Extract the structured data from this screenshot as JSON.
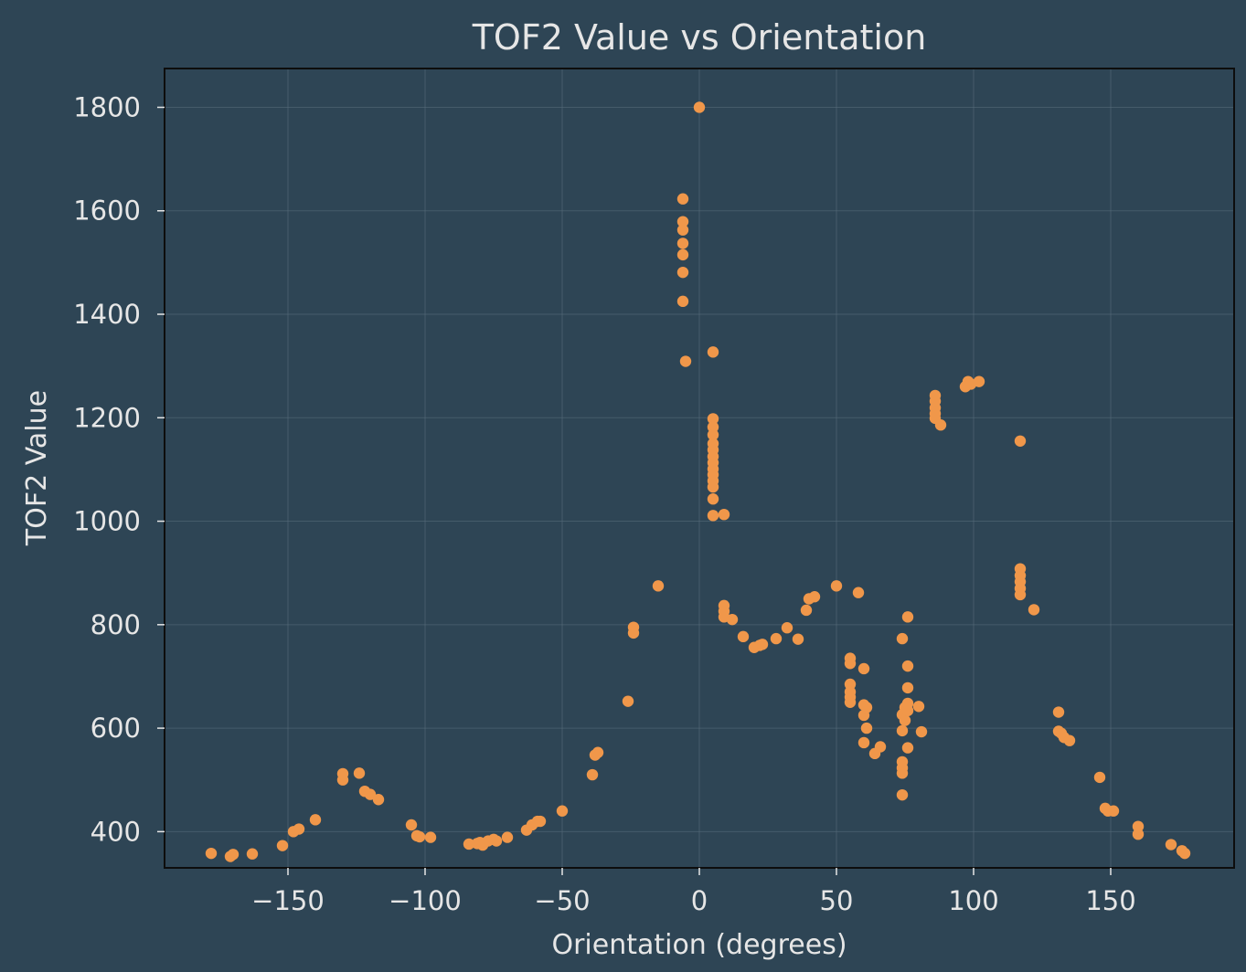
{
  "colors": {
    "background": "#2e4555",
    "plot_background": "#2e4555",
    "axes_frame": "#0d0d0d",
    "grid": "#5a6e7b",
    "text": "#e6e6e6",
    "marker": "#f0974a"
  },
  "chart_data": {
    "type": "scatter",
    "title": "TOF2 Value vs Orientation",
    "xlabel": "Orientation (degrees)",
    "ylabel": "TOF2 Value",
    "xlim": [
      -195,
      195
    ],
    "ylim": [
      330,
      1875
    ],
    "xticks": [
      -150,
      -100,
      -50,
      0,
      50,
      100,
      150
    ],
    "xtick_labels": [
      "−150",
      "−100",
      "−50",
      "0",
      "50",
      "100",
      "150"
    ],
    "yticks": [
      400,
      600,
      800,
      1000,
      1200,
      1400,
      1600,
      1800
    ],
    "ytick_labels": [
      "400",
      "600",
      "800",
      "1000",
      "1200",
      "1400",
      "1600",
      "1800"
    ],
    "grid": true,
    "series": [
      {
        "points": [
          [
            -178,
            358
          ],
          [
            -171,
            352
          ],
          [
            -170,
            356
          ],
          [
            -163,
            357
          ],
          [
            -152,
            373
          ],
          [
            -148,
            400
          ],
          [
            -146,
            405
          ],
          [
            -140,
            423
          ],
          [
            -130,
            500
          ],
          [
            -130,
            512
          ],
          [
            -124,
            513
          ],
          [
            -122,
            478
          ],
          [
            -120,
            472
          ],
          [
            -117,
            462
          ],
          [
            -105,
            413
          ],
          [
            -103,
            392
          ],
          [
            -102,
            390
          ],
          [
            -98,
            389
          ],
          [
            -84,
            376
          ],
          [
            -81,
            377
          ],
          [
            -80,
            379
          ],
          [
            -79,
            374
          ],
          [
            -77,
            382
          ],
          [
            -75,
            385
          ],
          [
            -74,
            382
          ],
          [
            -70,
            389
          ],
          [
            -63,
            403
          ],
          [
            -61,
            413
          ],
          [
            -59,
            420
          ],
          [
            -58,
            420
          ],
          [
            -50,
            440
          ],
          [
            -39,
            510
          ],
          [
            -38,
            548
          ],
          [
            -37,
            553
          ],
          [
            -26,
            652
          ],
          [
            -24,
            784
          ],
          [
            -24,
            795
          ],
          [
            -15,
            875
          ],
          [
            -6,
            1623
          ],
          [
            -6,
            1579
          ],
          [
            -6,
            1563
          ],
          [
            -6,
            1537
          ],
          [
            -6,
            1515
          ],
          [
            -6,
            1481
          ],
          [
            -6,
            1425
          ],
          [
            -5,
            1309
          ],
          [
            0,
            1800
          ],
          [
            5,
            1327
          ],
          [
            5,
            1198
          ],
          [
            5,
            1182
          ],
          [
            5,
            1167
          ],
          [
            5,
            1150
          ],
          [
            5,
            1138
          ],
          [
            5,
            1125
          ],
          [
            5,
            1113
          ],
          [
            5,
            1101
          ],
          [
            5,
            1090
          ],
          [
            5,
            1078
          ],
          [
            5,
            1066
          ],
          [
            5,
            1043
          ],
          [
            5,
            1011
          ],
          [
            9,
            1013
          ],
          [
            9,
            837
          ],
          [
            9,
            826
          ],
          [
            9,
            815
          ],
          [
            12,
            810
          ],
          [
            16,
            777
          ],
          [
            20,
            756
          ],
          [
            22,
            760
          ],
          [
            23,
            762
          ],
          [
            28,
            773
          ],
          [
            32,
            794
          ],
          [
            36,
            772
          ],
          [
            39,
            828
          ],
          [
            40,
            850
          ],
          [
            42,
            854
          ],
          [
            50,
            875
          ],
          [
            55,
            735
          ],
          [
            55,
            725
          ],
          [
            55,
            685
          ],
          [
            55,
            670
          ],
          [
            55,
            660
          ],
          [
            55,
            650
          ],
          [
            58,
            862
          ],
          [
            60,
            715
          ],
          [
            60,
            645
          ],
          [
            60,
            625
          ],
          [
            60,
            572
          ],
          [
            61,
            600
          ],
          [
            61,
            640
          ],
          [
            64,
            551
          ],
          [
            66,
            564
          ],
          [
            74,
            773
          ],
          [
            74,
            626
          ],
          [
            74,
            595
          ],
          [
            74,
            535
          ],
          [
            74,
            523
          ],
          [
            74,
            513
          ],
          [
            74,
            471
          ],
          [
            75,
            640
          ],
          [
            75,
            615
          ],
          [
            76,
            815
          ],
          [
            76,
            720
          ],
          [
            76,
            678
          ],
          [
            76,
            648
          ],
          [
            76,
            634
          ],
          [
            76,
            562
          ],
          [
            80,
            642
          ],
          [
            81,
            593
          ],
          [
            86,
            1243
          ],
          [
            86,
            1232
          ],
          [
            86,
            1219
          ],
          [
            86,
            1208
          ],
          [
            86,
            1199
          ],
          [
            88,
            1186
          ],
          [
            97,
            1260
          ],
          [
            98,
            1270
          ],
          [
            99,
            1265
          ],
          [
            102,
            1270
          ],
          [
            117,
            1155
          ],
          [
            117,
            908
          ],
          [
            117,
            895
          ],
          [
            117,
            883
          ],
          [
            117,
            870
          ],
          [
            117,
            858
          ],
          [
            122,
            829
          ],
          [
            131,
            631
          ],
          [
            131,
            594
          ],
          [
            132,
            590
          ],
          [
            133,
            582
          ],
          [
            135,
            576
          ],
          [
            146,
            505
          ],
          [
            148,
            445
          ],
          [
            149,
            440
          ],
          [
            151,
            440
          ],
          [
            160,
            410
          ],
          [
            160,
            395
          ],
          [
            172,
            375
          ],
          [
            176,
            363
          ],
          [
            177,
            358
          ]
        ]
      }
    ]
  }
}
